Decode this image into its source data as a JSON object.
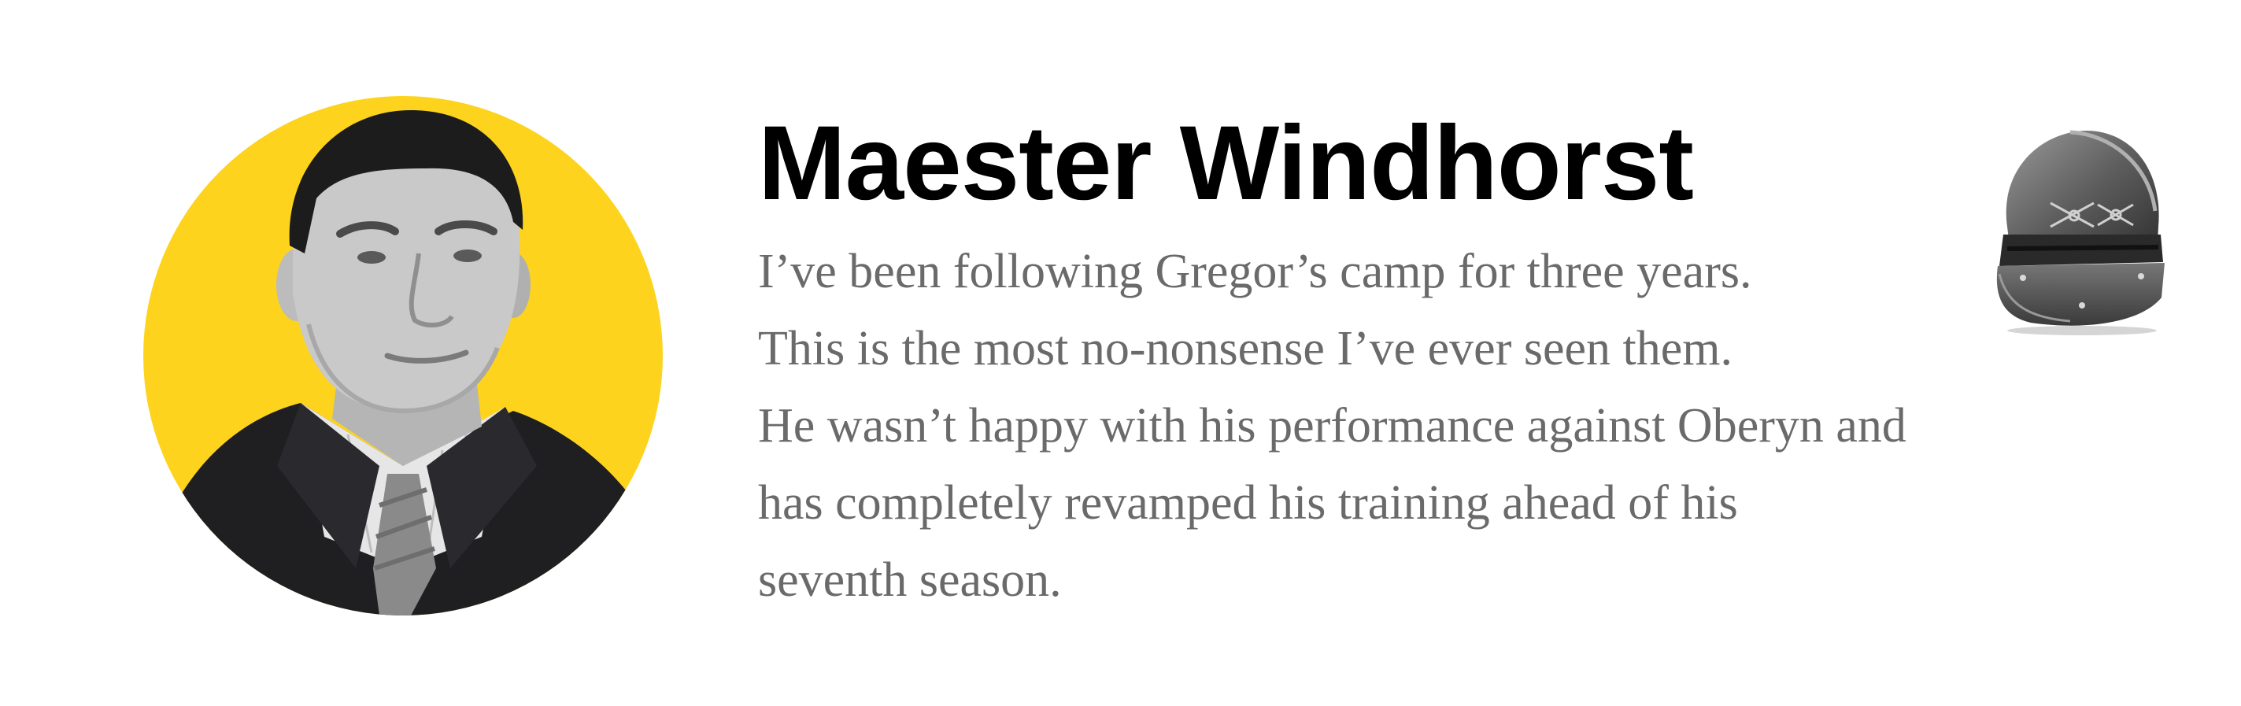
{
  "profile": {
    "name": "Maester Windhorst",
    "quote_lines": [
      "I’ve been following Gregor’s camp for three years.",
      "This is the most no-nonsense I’ve ever seen them.",
      "He wasn’t happy with his performance against Oberyn and",
      "has completely revamped his training ahead of his",
      "seventh season."
    ]
  },
  "colors": {
    "avatar_background": "#FDD31D",
    "quote_text": "#6a6a6a",
    "name_text": "#000000"
  },
  "icons": {
    "avatar": "man-portrait-grayscale",
    "helmet": "knight-helmet-icon"
  }
}
